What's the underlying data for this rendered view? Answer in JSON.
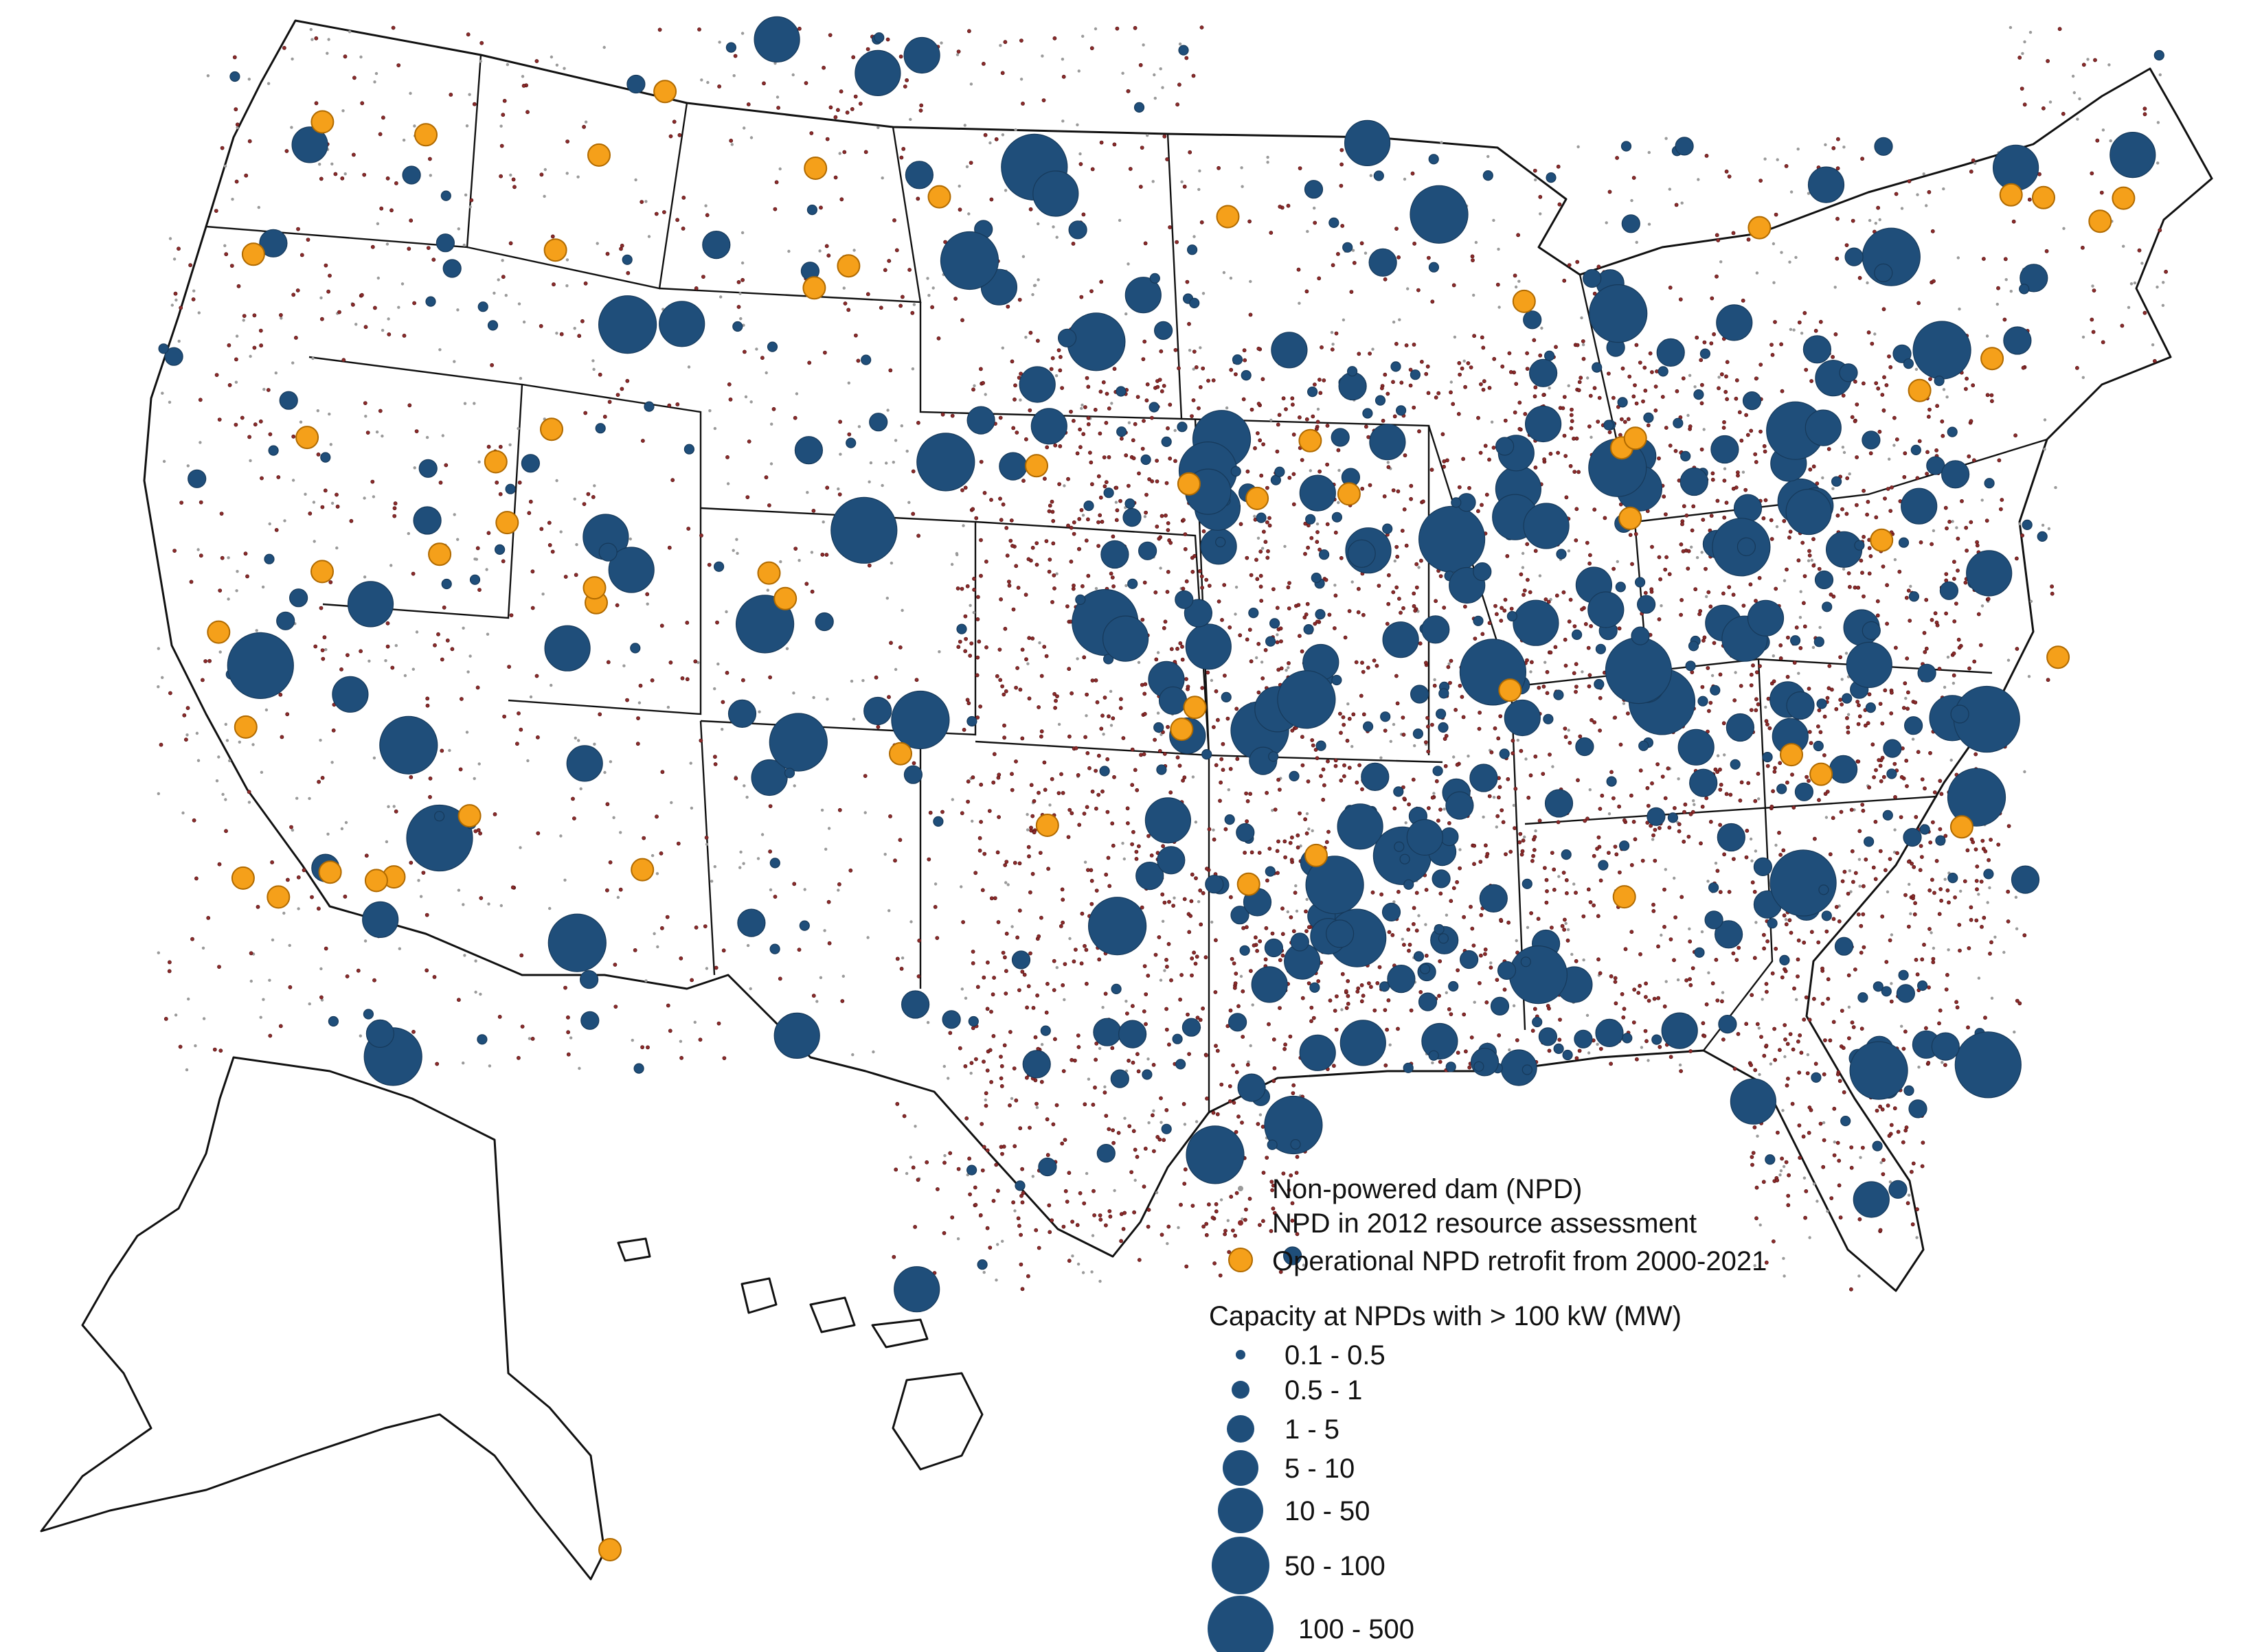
{
  "legend": {
    "items": [
      {
        "label": "Non-powered dam (NPD)",
        "color": "#9a9a9a",
        "marker": "small-gray-dot"
      },
      {
        "label": "NPD in 2012 resource assessment",
        "color": "#8b2a2a",
        "marker": "small-red-dot"
      },
      {
        "label": "Operational NPD retrofit from 2000-2021",
        "color": "#f5a01a",
        "marker": "orange-circle"
      }
    ],
    "capacity_title": "Capacity at NPDs with > 100 kW (MW)",
    "capacity_color": "#1f4e7a",
    "capacity_classes": [
      {
        "label": "0.1 - 0.5"
      },
      {
        "label": "0.5 - 1"
      },
      {
        "label": "1 - 5"
      },
      {
        "label": "5 - 10"
      },
      {
        "label": "10 - 50"
      },
      {
        "label": "50 - 100"
      },
      {
        "label": "100 - 500"
      }
    ]
  },
  "colors": {
    "npd_gray": "#9a9a9a",
    "npd_2012": "#8b2a2a",
    "retrofit": "#f5a01a",
    "capacity": "#1f4e7a",
    "outline": "#111111"
  }
}
